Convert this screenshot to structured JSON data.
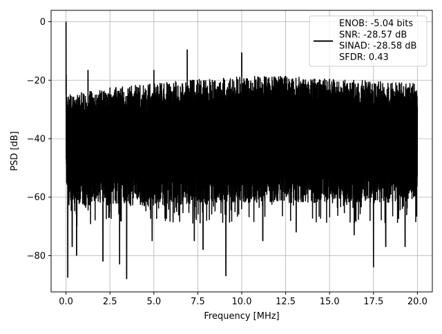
{
  "chart_data": {
    "type": "line",
    "xlabel": "Frequency [MHz]",
    "ylabel": "PSD [dB]",
    "xlim": [
      -0.85,
      20.85
    ],
    "ylim": [
      -92.4,
      3.9
    ],
    "xticks": [
      0.0,
      2.5,
      5.0,
      7.5,
      10.0,
      12.5,
      15.0,
      17.5,
      20.0
    ],
    "xtick_labels": [
      "0.0",
      "2.5",
      "5.0",
      "7.5",
      "10.0",
      "12.5",
      "15.0",
      "17.5",
      "20.0"
    ],
    "yticks": [
      0,
      -20,
      -40,
      -60,
      -80
    ],
    "ytick_labels": [
      "0",
      "−20",
      "−40",
      "−60",
      "−80"
    ],
    "grid": true,
    "legend_position": "top-right",
    "series": [
      {
        "legend_lines": [
          "ENOB: -5.04 bits",
          "SNR: -28.57 dB",
          "SINAD: -28.58 dB",
          "SFDR: 0.43"
        ],
        "color": "#000000",
        "noise_floor_upper": [
          [
            0.0,
            -25
          ],
          [
            2.5,
            -22.5
          ],
          [
            5.0,
            -21
          ],
          [
            7.5,
            -19.5
          ],
          [
            10.0,
            -18.5
          ],
          [
            12.5,
            -18.5
          ],
          [
            15.0,
            -19.5
          ],
          [
            17.5,
            -20
          ],
          [
            20.0,
            -21
          ]
        ],
        "noise_floor_lower": [
          [
            0.0,
            -63
          ],
          [
            5.0,
            -63
          ],
          [
            10.0,
            -62
          ],
          [
            15.0,
            -62
          ],
          [
            20.0,
            -62
          ]
        ],
        "peaks": [
          [
            0.0,
            0.0
          ],
          [
            1.25,
            -16.5
          ],
          [
            2.5,
            -25.5
          ],
          [
            5.0,
            -16.5
          ],
          [
            6.9,
            -9.5
          ],
          [
            10.0,
            -10.5
          ],
          [
            12.5,
            -21
          ],
          [
            15.0,
            -22
          ]
        ],
        "dips": [
          [
            0.1,
            -87.5
          ],
          [
            0.35,
            -77
          ],
          [
            0.6,
            -80
          ],
          [
            2.1,
            -82
          ],
          [
            3.05,
            -83
          ],
          [
            3.45,
            -88
          ],
          [
            4.9,
            -75
          ],
          [
            7.3,
            -75
          ],
          [
            7.8,
            -78
          ],
          [
            9.1,
            -87
          ],
          [
            11.2,
            -75
          ],
          [
            13.1,
            -72
          ],
          [
            16.4,
            -73
          ],
          [
            17.5,
            -84
          ],
          [
            18.2,
            -77
          ],
          [
            19.3,
            -77
          ]
        ]
      }
    ]
  }
}
